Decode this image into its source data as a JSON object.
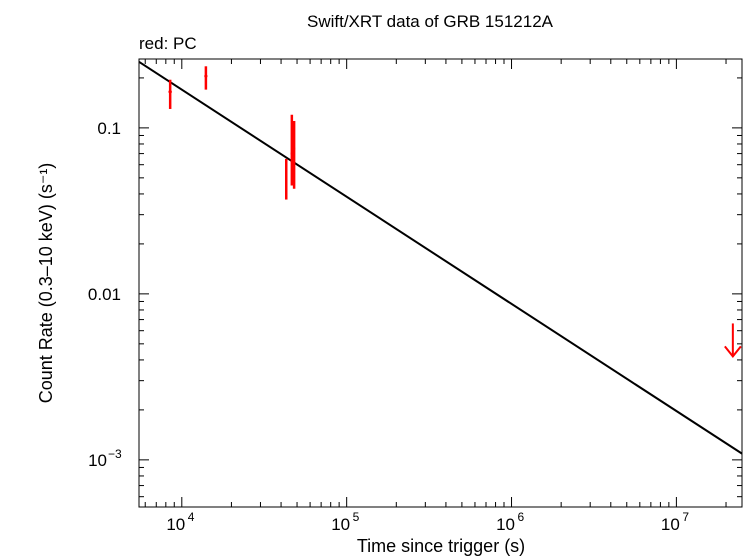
{
  "chart_data": {
    "type": "scatter",
    "title": "Swift/XRT data of GRB 151212A",
    "subtitle": "red: PC",
    "xlabel": "Time since trigger (s)",
    "ylabel": "Count Rate (0.3–10 keV) (s⁻¹)",
    "x_scale": "log",
    "y_scale": "log",
    "xlim": [
      5500,
      25000000
    ],
    "ylim": [
      0.00052,
      0.26
    ],
    "x_ticks": [
      {
        "value": 10000,
        "base": "10",
        "exp": "4"
      },
      {
        "value": 100000,
        "base": "10",
        "exp": "5"
      },
      {
        "value": 1000000,
        "base": "10",
        "exp": "6"
      },
      {
        "value": 10000000,
        "base": "10",
        "exp": "7"
      }
    ],
    "y_ticks": [
      {
        "value": 0.1,
        "label": "0.1"
      },
      {
        "value": 0.01,
        "label": "0.01"
      },
      {
        "value": 0.001,
        "base": "10",
        "exp": "−3"
      }
    ],
    "series": [
      {
        "name": "PC",
        "color": "#ff0000",
        "points": [
          {
            "x": 8500,
            "y": 0.165,
            "y_low": 0.13,
            "y_high": 0.195,
            "x_low": 8300,
            "x_high": 8700
          },
          {
            "x": 14000,
            "y": 0.205,
            "y_low": 0.17,
            "y_high": 0.235,
            "x_low": 13700,
            "x_high": 14300
          },
          {
            "x": 43000,
            "y": 0.05,
            "y_low": 0.037,
            "y_high": 0.065,
            "x_low": 42300,
            "x_high": 43700
          },
          {
            "x": 46500,
            "y": 0.07,
            "y_low": 0.045,
            "y_high": 0.12,
            "x_low": 45700,
            "x_high": 47300
          },
          {
            "x": 48000,
            "y": 0.075,
            "y_low": 0.043,
            "y_high": 0.11,
            "x_low": 47300,
            "x_high": 48700
          }
        ],
        "upper_limits": [
          {
            "x": 22000000,
            "y": 0.0045
          }
        ]
      }
    ],
    "fit": {
      "color": "#000000",
      "points": [
        {
          "x": 5500,
          "y": 0.25
        },
        {
          "x": 25000000,
          "y": 0.00109
        }
      ]
    },
    "grid": false,
    "legend": "none"
  }
}
